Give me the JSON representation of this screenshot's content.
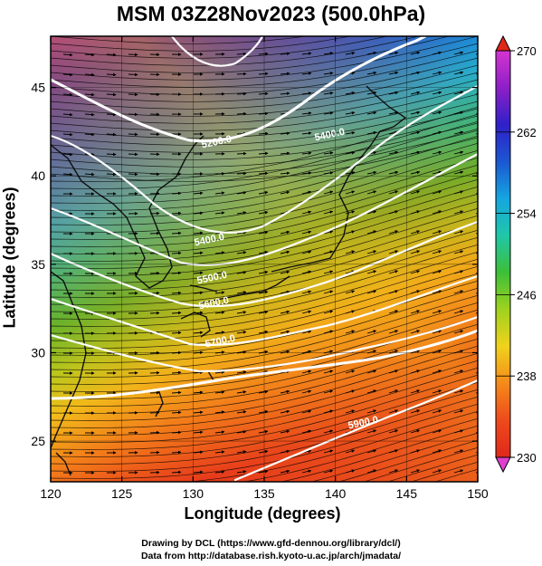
{
  "title": "MSM 03Z28Nov2023 (500.0hPa)",
  "axes": {
    "xlabel": "Longitude (degrees)",
    "ylabel": "Latitude  (degrees)",
    "x_ticks": [
      "120",
      "125",
      "130",
      "135",
      "140",
      "145",
      "150"
    ],
    "y_ticks": [
      "25",
      "30",
      "35",
      "40",
      "45"
    ]
  },
  "colorbar": {
    "ticks": [
      "270",
      "262",
      "254",
      "246",
      "238",
      "230"
    ],
    "min": 230,
    "max": 270,
    "colors": [
      "#d535d0",
      "#8e1fc8",
      "#2f20c8",
      "#1b57d2",
      "#15a6e0",
      "#20c7a8",
      "#3cbf38",
      "#9ed21f",
      "#f0d21c",
      "#f58a1a",
      "#ee4a1c",
      "#e0281a"
    ]
  },
  "contours": {
    "labels": [
      "5200.0",
      "5400.0",
      "5400.0",
      "5500.0",
      "5600.0",
      "5700.0",
      "5900.0"
    ]
  },
  "credits": {
    "line1": "Drawing by DCL (https://www.gfd-dennou.org/library/dcl/)",
    "line2": "Data from http://database.rish.kyoto-u.ac.jp/arch/jmadata/"
  }
}
